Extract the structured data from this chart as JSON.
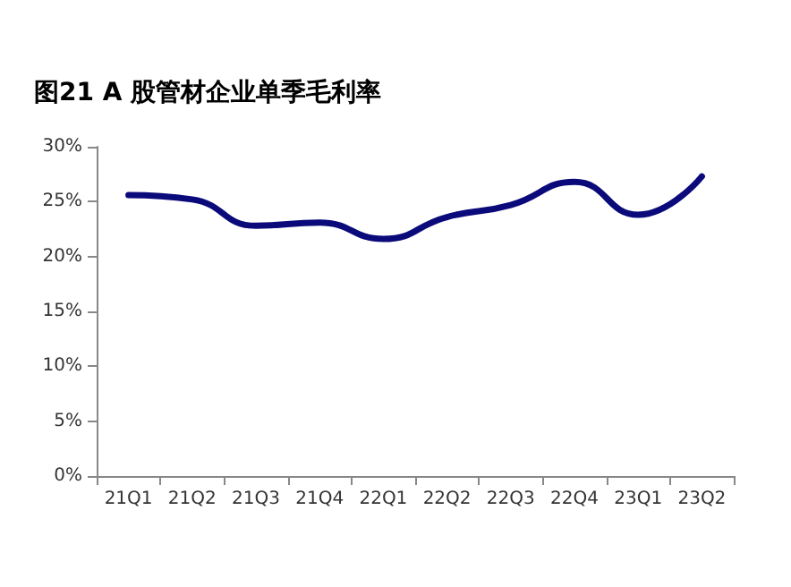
{
  "chart_data": {
    "type": "line",
    "title": "图21 A 股管材企业单季毛利率",
    "categories": [
      "21Q1",
      "21Q2",
      "21Q3",
      "21Q4",
      "22Q1",
      "22Q2",
      "22Q3",
      "22Q4",
      "23Q1",
      "23Q2"
    ],
    "series": [
      {
        "color": "#0a0a7a",
        "values": [
          25.6,
          25.2,
          22.8,
          23.1,
          21.6,
          23.6,
          24.7,
          26.8,
          23.8,
          27.3
        ]
      }
    ],
    "ylim": [
      0,
      30
    ],
    "yticks": [
      {
        "value": 0,
        "label": "0%"
      },
      {
        "value": 5,
        "label": "5%"
      },
      {
        "value": 10,
        "label": "10%"
      },
      {
        "value": 15,
        "label": "15%"
      },
      {
        "value": 20,
        "label": "20%"
      },
      {
        "value": 25,
        "label": "25%"
      },
      {
        "value": 30,
        "label": "30%"
      }
    ],
    "grid": false,
    "marker": "none",
    "line_style": "solid"
  }
}
